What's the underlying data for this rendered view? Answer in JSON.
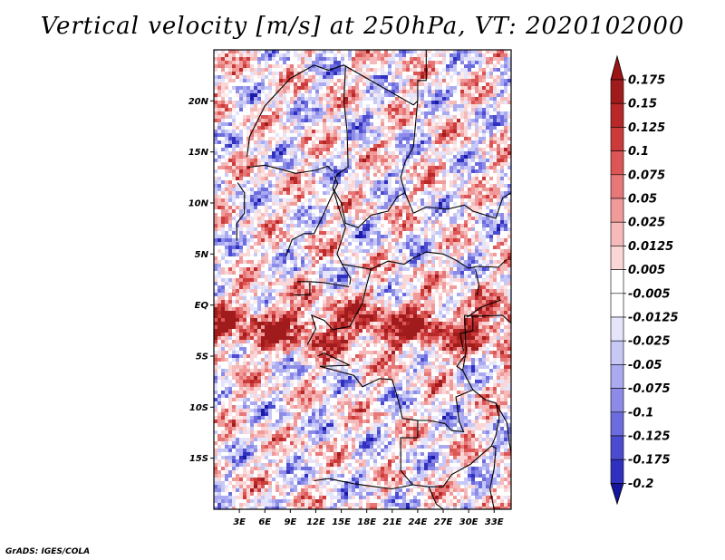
{
  "title": "Vertical velocity [m/s] at 250hPa, VT: 2020102000",
  "credit": "GrADS: IGES/COLA",
  "map": {
    "lon_range": [
      0,
      35
    ],
    "lat_range": [
      -20,
      25
    ],
    "lat_ticks": [
      {
        "value": 20,
        "label": "20N"
      },
      {
        "value": 15,
        "label": "15N"
      },
      {
        "value": 10,
        "label": "10N"
      },
      {
        "value": 5,
        "label": "5N"
      },
      {
        "value": 0,
        "label": "EQ"
      },
      {
        "value": -5,
        "label": "5S"
      },
      {
        "value": -10,
        "label": "10S"
      },
      {
        "value": -15,
        "label": "15S"
      }
    ],
    "lon_ticks": [
      {
        "value": 3,
        "label": "3E"
      },
      {
        "value": 6,
        "label": "6E"
      },
      {
        "value": 9,
        "label": "9E"
      },
      {
        "value": 12,
        "label": "12E"
      },
      {
        "value": 15,
        "label": "15E"
      },
      {
        "value": 18,
        "label": "18E"
      },
      {
        "value": 21,
        "label": "21E"
      },
      {
        "value": 24,
        "label": "24E"
      },
      {
        "value": 27,
        "label": "27E"
      },
      {
        "value": 30,
        "label": "30E"
      },
      {
        "value": 33,
        "label": "33E"
      }
    ]
  },
  "colorbar": {
    "levels": [
      {
        "label": "0.175",
        "color": "#a01c1c"
      },
      {
        "label": "0.15",
        "color": "#b82828"
      },
      {
        "label": "0.125",
        "color": "#cc3a3a"
      },
      {
        "label": "0.1",
        "color": "#dc5656"
      },
      {
        "label": "0.075",
        "color": "#e67878"
      },
      {
        "label": "0.05",
        "color": "#f09a9a"
      },
      {
        "label": "0.025",
        "color": "#f6baba"
      },
      {
        "label": "0.0125",
        "color": "#fad6d6"
      },
      {
        "label": "0.005",
        "color": "#fdeaea"
      },
      {
        "label": "-0.005",
        "color": "#ffffff"
      },
      {
        "label": "-0.0125",
        "color": "#e4e4fb"
      },
      {
        "label": "-0.025",
        "color": "#c8c8f6"
      },
      {
        "label": "-0.05",
        "color": "#aaaaf0"
      },
      {
        "label": "-0.075",
        "color": "#8c8ce8"
      },
      {
        "label": "-0.1",
        "color": "#6c6cde"
      },
      {
        "label": "-0.125",
        "color": "#4c4cd0"
      },
      {
        "label": "-0.175",
        "color": "#3030c0"
      },
      {
        "label": "-0.2",
        "color": "#1a1aa8"
      }
    ],
    "top_color": "#9c1414",
    "bottom_color": "#14149c"
  }
}
